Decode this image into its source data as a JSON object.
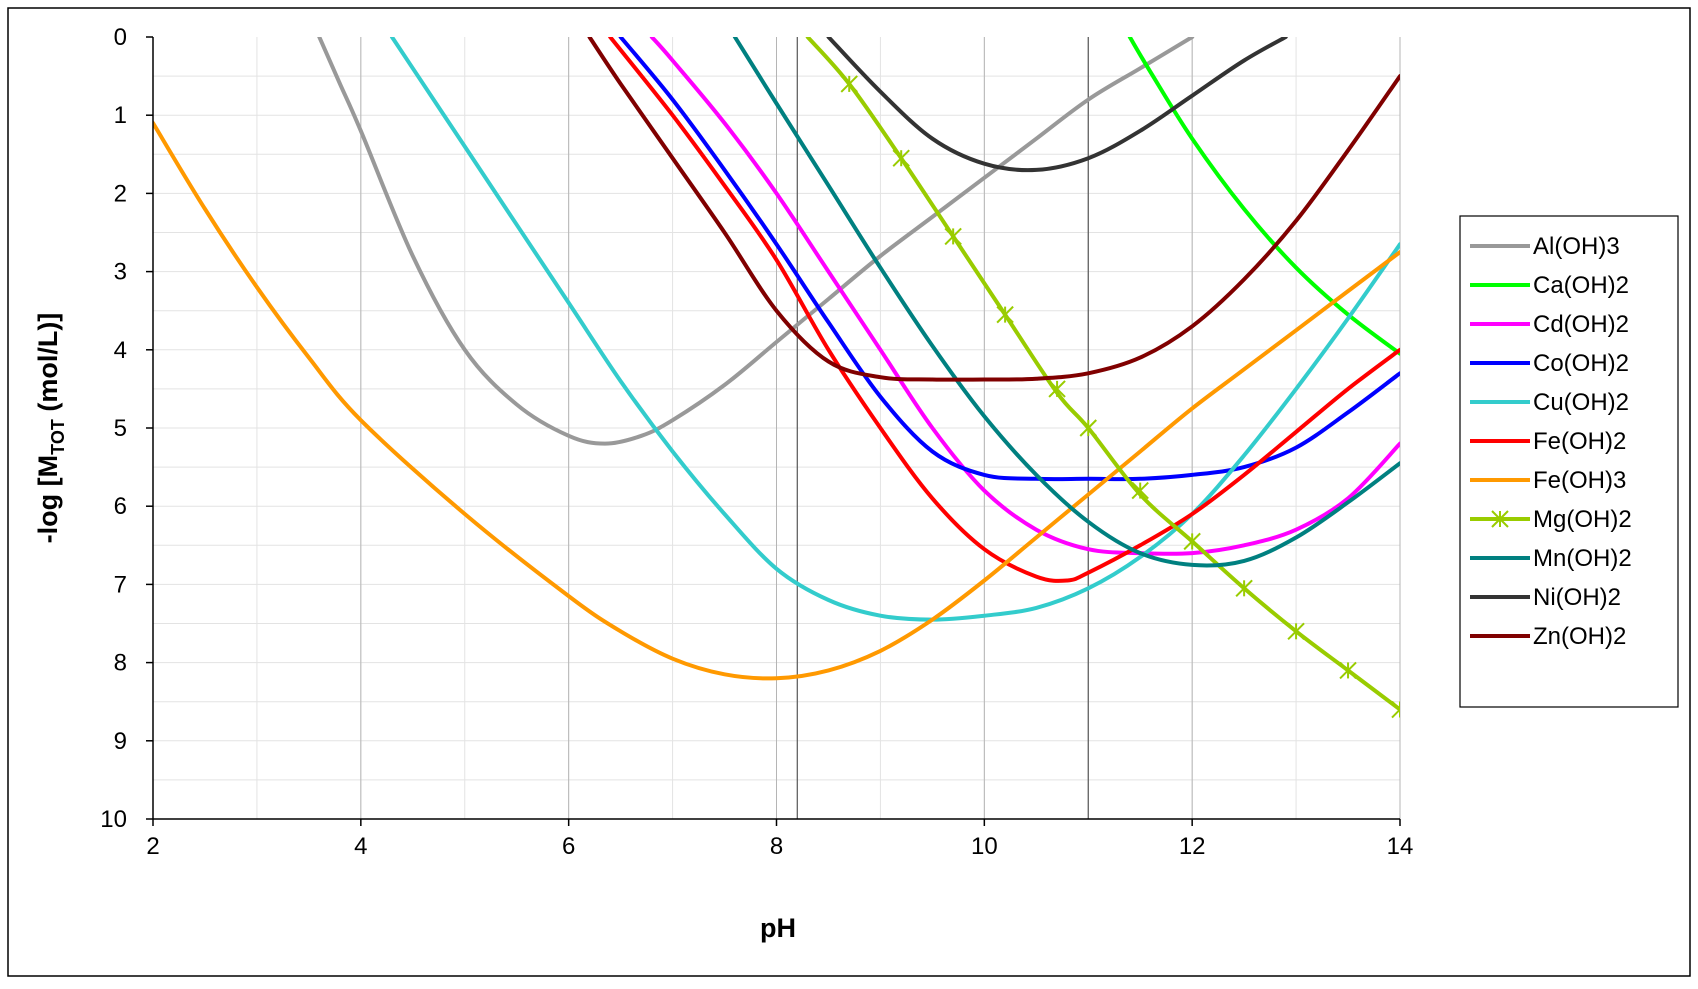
{
  "chart_data": {
    "type": "line",
    "title": "",
    "xlabel": "pH",
    "ylabel": {
      "prefix": "-log [M",
      "subscript": "TOT",
      "suffix": " (mol/L)]"
    },
    "xlim": [
      2,
      14
    ],
    "ylim": [
      0,
      10
    ],
    "y_inverted": true,
    "x_ticks": [
      "2",
      "4",
      "6",
      "8",
      "10",
      "12",
      "14"
    ],
    "y_ticks": [
      "0",
      "1",
      "2",
      "3",
      "4",
      "5",
      "6",
      "7",
      "8",
      "9",
      "10"
    ],
    "grid": true,
    "reference_lines_x": [
      8.2,
      11
    ],
    "legend_position": "right",
    "series": [
      {
        "name": "Al(OH)3",
        "color": "#999999",
        "marker": false,
        "points": [
          [
            3.6,
            0
          ],
          [
            3.8,
            0.6
          ],
          [
            4,
            1.2
          ],
          [
            4.5,
            2.8
          ],
          [
            5,
            4.0
          ],
          [
            5.5,
            4.7
          ],
          [
            6,
            5.1
          ],
          [
            6.35,
            5.2
          ],
          [
            6.7,
            5.1
          ],
          [
            7,
            4.9
          ],
          [
            7.5,
            4.45
          ],
          [
            8,
            3.9
          ],
          [
            8.5,
            3.35
          ],
          [
            9,
            2.8
          ],
          [
            9.5,
            2.3
          ],
          [
            10,
            1.8
          ],
          [
            10.5,
            1.3
          ],
          [
            11,
            0.8
          ],
          [
            11.5,
            0.4
          ],
          [
            12,
            0.0
          ]
        ]
      },
      {
        "name": "Ca(OH)2",
        "color": "#00ff00",
        "marker": false,
        "points": [
          [
            11.4,
            0
          ],
          [
            11.6,
            0.45
          ],
          [
            12,
            1.3
          ],
          [
            12.5,
            2.2
          ],
          [
            13,
            2.95
          ],
          [
            13.5,
            3.55
          ],
          [
            14,
            4.05
          ]
        ]
      },
      {
        "name": "Cd(OH)2",
        "color": "#ff00ff",
        "marker": false,
        "points": [
          [
            6.8,
            0
          ],
          [
            7,
            0.3
          ],
          [
            7.5,
            1.1
          ],
          [
            8,
            2.0
          ],
          [
            8.5,
            3.0
          ],
          [
            9,
            4.0
          ],
          [
            9.5,
            5.0
          ],
          [
            10,
            5.8
          ],
          [
            10.5,
            6.3
          ],
          [
            11,
            6.55
          ],
          [
            11.5,
            6.6
          ],
          [
            12,
            6.6
          ],
          [
            12.5,
            6.5
          ],
          [
            13,
            6.3
          ],
          [
            13.5,
            5.9
          ],
          [
            14,
            5.2
          ]
        ]
      },
      {
        "name": "Co(OH)2",
        "color": "#0000ff",
        "marker": false,
        "points": [
          [
            6.5,
            0
          ],
          [
            7,
            0.8
          ],
          [
            7.5,
            1.7
          ],
          [
            8,
            2.65
          ],
          [
            8.5,
            3.65
          ],
          [
            9,
            4.6
          ],
          [
            9.5,
            5.3
          ],
          [
            10,
            5.6
          ],
          [
            10.5,
            5.65
          ],
          [
            11,
            5.65
          ],
          [
            11.5,
            5.65
          ],
          [
            12,
            5.6
          ],
          [
            12.5,
            5.5
          ],
          [
            13,
            5.25
          ],
          [
            13.5,
            4.8
          ],
          [
            14,
            4.3
          ]
        ]
      },
      {
        "name": "Cu(OH)2",
        "color": "#33cccc",
        "marker": false,
        "points": [
          [
            4.3,
            0
          ],
          [
            4.5,
            0.4
          ],
          [
            5,
            1.4
          ],
          [
            5.5,
            2.4
          ],
          [
            6,
            3.4
          ],
          [
            6.5,
            4.4
          ],
          [
            7,
            5.3
          ],
          [
            7.5,
            6.1
          ],
          [
            8,
            6.8
          ],
          [
            8.5,
            7.2
          ],
          [
            9,
            7.4
          ],
          [
            9.5,
            7.45
          ],
          [
            10,
            7.4
          ],
          [
            10.5,
            7.3
          ],
          [
            11,
            7.05
          ],
          [
            11.5,
            6.65
          ],
          [
            12,
            6.1
          ],
          [
            12.5,
            5.35
          ],
          [
            13,
            4.5
          ],
          [
            13.5,
            3.6
          ],
          [
            14,
            2.65
          ]
        ]
      },
      {
        "name": "Fe(OH)2",
        "color": "#ff0000",
        "marker": false,
        "points": [
          [
            6.4,
            0
          ],
          [
            7,
            1.0
          ],
          [
            7.5,
            1.9
          ],
          [
            8,
            2.85
          ],
          [
            8.5,
            4.0
          ],
          [
            9,
            5.0
          ],
          [
            9.5,
            5.9
          ],
          [
            10,
            6.55
          ],
          [
            10.5,
            6.9
          ],
          [
            10.8,
            6.95
          ],
          [
            11,
            6.85
          ],
          [
            11.5,
            6.5
          ],
          [
            12,
            6.1
          ],
          [
            12.5,
            5.6
          ],
          [
            13,
            5.05
          ],
          [
            13.5,
            4.5
          ],
          [
            14,
            4.0
          ]
        ]
      },
      {
        "name": "Fe(OH)3",
        "color": "#ff9900",
        "marker": false,
        "points": [
          [
            2,
            1.1
          ],
          [
            2.5,
            2.2
          ],
          [
            3,
            3.2
          ],
          [
            3.5,
            4.1
          ],
          [
            4,
            4.9
          ],
          [
            5,
            6.1
          ],
          [
            6,
            7.15
          ],
          [
            6.5,
            7.6
          ],
          [
            7,
            7.95
          ],
          [
            7.5,
            8.15
          ],
          [
            8,
            8.2
          ],
          [
            8.5,
            8.1
          ],
          [
            9,
            7.85
          ],
          [
            9.5,
            7.45
          ],
          [
            10,
            6.95
          ],
          [
            10.5,
            6.4
          ],
          [
            11,
            5.85
          ],
          [
            11.5,
            5.3
          ],
          [
            12,
            4.75
          ],
          [
            12.5,
            4.25
          ],
          [
            13,
            3.75
          ],
          [
            13.5,
            3.25
          ],
          [
            14,
            2.75
          ]
        ]
      },
      {
        "name": "Mg(OH)2",
        "color": "#99cc00",
        "marker": true,
        "points": [
          [
            8.3,
            0
          ],
          [
            8.7,
            0.6
          ],
          [
            9.2,
            1.55
          ],
          [
            9.7,
            2.55
          ],
          [
            10.2,
            3.55
          ],
          [
            10.7,
            4.55
          ],
          [
            11,
            5.0
          ],
          [
            11.5,
            5.85
          ],
          [
            12,
            6.45
          ],
          [
            12.5,
            7.05
          ],
          [
            13,
            7.6
          ],
          [
            13.5,
            8.1
          ],
          [
            14,
            8.6
          ]
        ],
        "marker_points": [
          [
            8.7,
            0.6
          ],
          [
            9.2,
            1.55
          ],
          [
            9.7,
            2.55
          ],
          [
            10.2,
            3.55
          ],
          [
            10.7,
            4.5
          ],
          [
            11,
            5.0
          ],
          [
            11.5,
            5.8
          ],
          [
            12,
            6.45
          ],
          [
            12.5,
            7.05
          ],
          [
            13,
            7.6
          ],
          [
            13.5,
            8.1
          ],
          [
            14,
            8.6
          ]
        ]
      },
      {
        "name": "Mn(OH)2",
        "color": "#008080",
        "marker": false,
        "points": [
          [
            7.6,
            0
          ],
          [
            8,
            0.85
          ],
          [
            8.5,
            1.9
          ],
          [
            9,
            2.95
          ],
          [
            9.5,
            3.95
          ],
          [
            10,
            4.85
          ],
          [
            10.5,
            5.6
          ],
          [
            11,
            6.2
          ],
          [
            11.5,
            6.6
          ],
          [
            12,
            6.75
          ],
          [
            12.5,
            6.7
          ],
          [
            13,
            6.4
          ],
          [
            13.5,
            5.95
          ],
          [
            14,
            5.45
          ]
        ]
      },
      {
        "name": "Ni(OH)2",
        "color": "#333333",
        "marker": false,
        "points": [
          [
            8.5,
            0
          ],
          [
            9,
            0.7
          ],
          [
            9.5,
            1.3
          ],
          [
            10,
            1.62
          ],
          [
            10.5,
            1.7
          ],
          [
            11,
            1.55
          ],
          [
            11.5,
            1.2
          ],
          [
            12,
            0.75
          ],
          [
            12.5,
            0.3
          ],
          [
            12.9,
            0
          ]
        ]
      },
      {
        "name": "Zn(OH)2",
        "color": "#800000",
        "marker": false,
        "points": [
          [
            6.2,
            0
          ],
          [
            6.5,
            0.6
          ],
          [
            7,
            1.55
          ],
          [
            7.5,
            2.5
          ],
          [
            8,
            3.5
          ],
          [
            8.5,
            4.15
          ],
          [
            9,
            4.35
          ],
          [
            9.5,
            4.38
          ],
          [
            10,
            4.38
          ],
          [
            10.5,
            4.37
          ],
          [
            11,
            4.3
          ],
          [
            11.5,
            4.1
          ],
          [
            12,
            3.7
          ],
          [
            12.5,
            3.1
          ],
          [
            13,
            2.35
          ],
          [
            13.5,
            1.45
          ],
          [
            14,
            0.5
          ]
        ]
      }
    ]
  }
}
